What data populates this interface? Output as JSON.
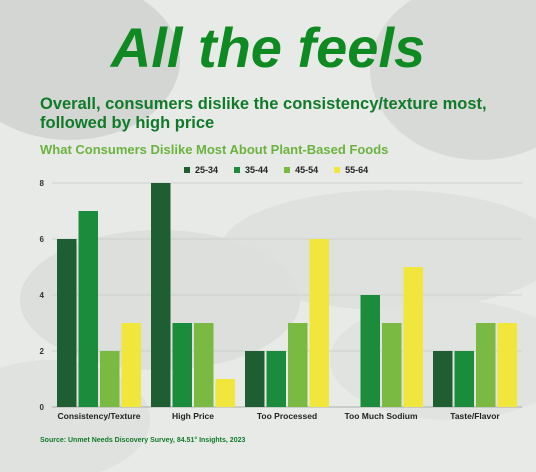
{
  "headline": "All the feels",
  "subheadline": "Overall, consumers dislike the consistency/texture most, followed by high price",
  "source": "Source: Unmet Needs Discovery Survey, 84.51° Insights, 2023",
  "colors": {
    "headline": "#0f8a22",
    "series": [
      "#1e5e32",
      "#1a8c3c",
      "#7ab942",
      "#f0e63c"
    ]
  },
  "chart_data": {
    "type": "bar",
    "title": "What Consumers Dislike Most About Plant-Based Foods",
    "categories": [
      "Consistency/Texture",
      "High Price",
      "Too Processed",
      "Too Much Sodium",
      "Taste/Flavor"
    ],
    "series": [
      {
        "name": "25-34",
        "values": [
          6,
          8,
          2,
          0,
          2
        ]
      },
      {
        "name": "35-44",
        "values": [
          7,
          3,
          2,
          4,
          2
        ]
      },
      {
        "name": "45-54",
        "values": [
          2,
          3,
          3,
          3,
          3
        ]
      },
      {
        "name": "55-64",
        "values": [
          3,
          1,
          6,
          5,
          3
        ]
      }
    ],
    "yticks": [
      0,
      2,
      4,
      6,
      8
    ],
    "ylim": [
      0,
      8
    ],
    "grid": true,
    "legend": "top"
  }
}
